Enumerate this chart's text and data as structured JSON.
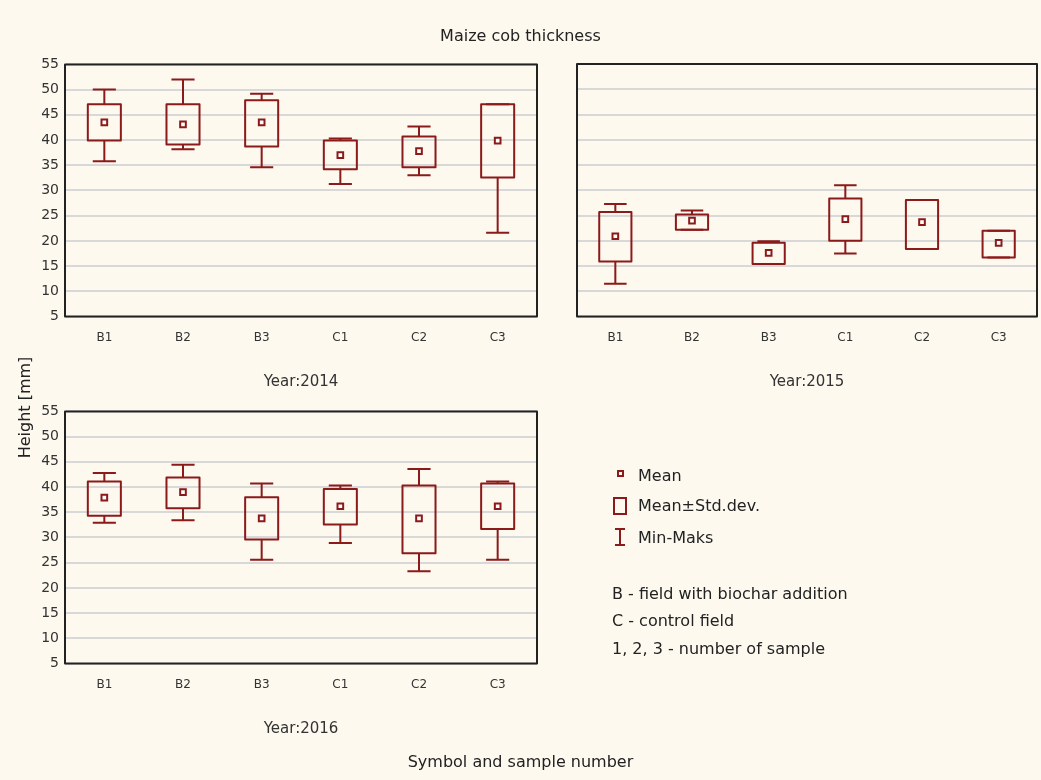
{
  "chart_data": [
    {
      "type": "box",
      "title": "Maize cob thickness",
      "ylabel": "Height [mm]",
      "xlabel": "Year:2014",
      "categories": [
        "B1",
        "B2",
        "B3",
        "C1",
        "C2",
        "C3"
      ],
      "color": "#8b1a1a",
      "ylim": [
        5,
        55
      ],
      "yticks": [
        5,
        10,
        15,
        20,
        25,
        30,
        35,
        40,
        45,
        50,
        55
      ],
      "grid": "y",
      "boxes": [
        {
          "low": 35.8,
          "q1": 39.9,
          "q3": 47.1,
          "high": 50.0,
          "mean": 43.5
        },
        {
          "low": 38.2,
          "q1": 39.1,
          "q3": 47.1,
          "high": 52.0,
          "mean": 43.1
        },
        {
          "low": 34.6,
          "q1": 38.7,
          "q3": 47.9,
          "high": 49.2,
          "mean": 43.5
        },
        {
          "low": 31.3,
          "q1": 34.2,
          "q3": 39.9,
          "high": 40.3,
          "mean": 37.0
        },
        {
          "low": 33.0,
          "q1": 34.6,
          "q3": 40.7,
          "high": 42.7,
          "mean": 37.8
        },
        {
          "low": 21.6,
          "q1": 32.6,
          "q3": 47.1,
          "high": 47.1,
          "mean": 39.9
        }
      ]
    },
    {
      "type": "box",
      "xlabel": "Year:2015",
      "categories": [
        "B1",
        "B2",
        "B3",
        "C1",
        "C2",
        "C3"
      ],
      "color": "#8b1a1a",
      "ylim": [
        5,
        55
      ],
      "yticks": [
        5,
        10,
        15,
        20,
        25,
        30,
        35,
        40,
        45,
        50,
        55
      ],
      "grid": "y",
      "tick_labels": "x",
      "boxes": [
        {
          "low": 11.5,
          "q1": 15.9,
          "q3": 25.7,
          "high": 27.3,
          "mean": 20.9
        },
        {
          "low": 22.2,
          "q1": 22.2,
          "q3": 25.2,
          "high": 26.0,
          "mean": 24.0
        },
        {
          "low": 15.4,
          "q1": 15.4,
          "q3": 19.6,
          "high": 19.9,
          "mean": 17.6
        },
        {
          "low": 17.5,
          "q1": 20.0,
          "q3": 28.4,
          "high": 31.0,
          "mean": 24.3
        },
        {
          "low": 18.4,
          "q1": 18.4,
          "q3": 28.1,
          "high": 28.1,
          "mean": 23.7
        },
        {
          "low": 16.7,
          "q1": 16.7,
          "q3": 22.0,
          "high": 22.0,
          "mean": 19.6
        }
      ]
    },
    {
      "type": "box",
      "xlabel": "Year:2016",
      "categories": [
        "B1",
        "B2",
        "B3",
        "C1",
        "C2",
        "C3"
      ],
      "color": "#8b1a1a",
      "ylim": [
        5,
        55
      ],
      "yticks": [
        5,
        10,
        15,
        20,
        25,
        30,
        35,
        40,
        45,
        50,
        55
      ],
      "grid": "y",
      "boxes": [
        {
          "low": 32.9,
          "q1": 34.3,
          "q3": 41.1,
          "high": 42.8,
          "mean": 37.9
        },
        {
          "low": 33.4,
          "q1": 35.8,
          "q3": 41.9,
          "high": 44.4,
          "mean": 39.0
        },
        {
          "low": 25.6,
          "q1": 29.6,
          "q3": 38.0,
          "high": 40.7,
          "mean": 33.8
        },
        {
          "low": 28.9,
          "q1": 32.6,
          "q3": 39.6,
          "high": 40.3,
          "mean": 36.2
        },
        {
          "low": 23.3,
          "q1": 26.9,
          "q3": 40.3,
          "high": 43.6,
          "mean": 33.8
        },
        {
          "low": 25.6,
          "q1": 31.7,
          "q3": 40.7,
          "high": 41.1,
          "mean": 36.2
        }
      ]
    },
    {
      "type": "other",
      "xlabel": "Symbol and sample number",
      "annotations": [
        "Mean",
        "Mean±Std.dev.",
        "Min-Maks",
        "B - field with biochar addition",
        "C - control field",
        "1, 2, 3 - number of sample"
      ]
    }
  ]
}
